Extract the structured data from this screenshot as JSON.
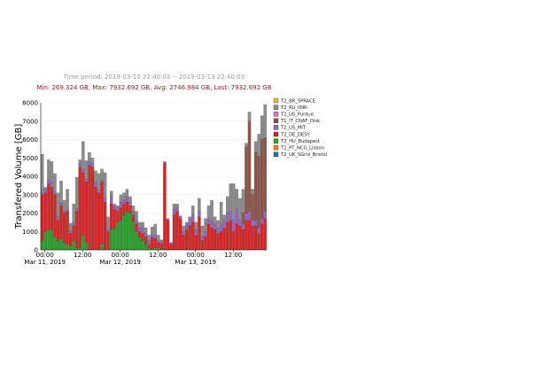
{
  "header": {
    "time_period": "Time period: 2019-03-10 22:40:03 -- 2019-03-13 22:40:03",
    "summary": "Min: 269.324 GB, Max: 7932.692 GB, Avg: 2746.984 GB, Last: 7932.692 GB"
  },
  "chart_data": {
    "type": "bar",
    "stacked": true,
    "title": "",
    "xlabel": "",
    "ylabel": "Transfered Volume [GB]",
    "ylim": [
      0,
      8000
    ],
    "yticks": [
      "0",
      "1000",
      "2000",
      "3000",
      "4000",
      "5000",
      "6000",
      "7000",
      "8000"
    ],
    "xticks": [
      {
        "hour": 1.33,
        "label": "00:00",
        "sublabel": "Mar 11, 2019"
      },
      {
        "hour": 13.33,
        "label": "12:00",
        "sublabel": ""
      },
      {
        "hour": 25.33,
        "label": "00:00",
        "sublabel": "Mar 12, 2019"
      },
      {
        "hour": 37.33,
        "label": "12:00",
        "sublabel": ""
      },
      {
        "hour": 49.33,
        "label": "00:00",
        "sublabel": "Mar 13, 2019"
      },
      {
        "hour": 61.33,
        "label": "12:00",
        "sublabel": ""
      }
    ],
    "n_bins": 72,
    "bin_hours": 1,
    "grid": true,
    "legend_position": "right",
    "legend": [
      {
        "name": "T2_BR_SPRACE",
        "color": "#d4c23a"
      },
      {
        "name": "T2_RU_IINR",
        "color": "#8c8c8c"
      },
      {
        "name": "T2_US_Purdue",
        "color": "#e377c2"
      },
      {
        "name": "T1_IT_CNAF_Disk",
        "color": "#8c564b"
      },
      {
        "name": "T2_US_MIT",
        "color": "#9467bd"
      },
      {
        "name": "T2_DE_DESY",
        "color": "#d62728"
      },
      {
        "name": "T2_HU_Budapest",
        "color": "#2ca02c"
      },
      {
        "name": "T2_PT_NCG_Lisbon",
        "color": "#ff7f0e"
      },
      {
        "name": "T2_UK_SGrid_Bristol",
        "color": "#1f77b4"
      }
    ],
    "series": [
      {
        "name": "T2_UK_SGrid_Bristol",
        "color": "#1f77b4",
        "values": [
          0,
          0,
          0,
          0,
          0,
          0,
          0,
          0,
          0,
          0,
          0,
          0,
          0,
          0,
          0,
          0,
          0,
          0,
          0,
          0,
          0,
          0,
          0,
          0,
          0,
          0,
          0,
          0,
          0,
          0,
          0,
          0,
          0,
          0,
          0,
          0,
          0,
          0,
          0,
          0,
          0,
          0,
          0,
          0,
          0,
          0,
          0,
          0,
          0,
          0,
          0,
          0,
          0,
          0,
          0,
          0,
          0,
          0,
          0,
          0,
          0,
          0,
          0,
          0,
          0,
          0,
          0,
          0,
          0,
          0,
          0,
          0
        ]
      },
      {
        "name": "T2_PT_NCG_Lisbon",
        "color": "#ff7f0e",
        "values": [
          0,
          0,
          0,
          0,
          0,
          0,
          0,
          0,
          0,
          0,
          0,
          0,
          0,
          0,
          0,
          0,
          0,
          0,
          0,
          0,
          0,
          0,
          0,
          0,
          0,
          0,
          0,
          0,
          0,
          0,
          0,
          0,
          0,
          0,
          0,
          0,
          0,
          0,
          0,
          0,
          0,
          0,
          0,
          0,
          0,
          0,
          0,
          0,
          0,
          0,
          0,
          0,
          0,
          0,
          0,
          0,
          0,
          0,
          0,
          0,
          0,
          0,
          0,
          0,
          0,
          0,
          0,
          0,
          0,
          0,
          0,
          0
        ]
      },
      {
        "name": "T2_HU_Budapest",
        "color": "#2ca02c",
        "values": [
          500,
          1000,
          1100,
          1100,
          700,
          500,
          600,
          400,
          300,
          200,
          500,
          100,
          100,
          800,
          400,
          0,
          0,
          0,
          0,
          300,
          0,
          0,
          1100,
          1200,
          1500,
          1600,
          1900,
          2100,
          2000,
          1500,
          1000,
          700,
          500,
          300,
          100,
          50,
          100,
          100,
          50,
          0,
          0,
          0,
          0,
          0,
          0,
          0,
          0,
          0,
          0,
          0,
          0,
          0,
          0,
          0,
          0,
          0,
          0,
          0,
          0,
          0,
          0,
          0,
          0,
          0,
          0,
          0,
          0,
          0,
          0,
          0,
          0,
          0
        ]
      },
      {
        "name": "T2_DE_DESY",
        "color": "#d62728",
        "values": [
          2500,
          2100,
          2500,
          2300,
          2300,
          1100,
          1800,
          1600,
          1800,
          700,
          800,
          2000,
          4400,
          3400,
          3300,
          4600,
          4500,
          3400,
          3100,
          3400,
          2600,
          1000,
          1400,
          1000,
          600,
          700,
          600,
          500,
          400,
          400,
          400,
          300,
          400,
          400,
          200,
          600,
          500,
          300,
          300,
          4700,
          1600,
          300,
          1900,
          2100,
          1700,
          800,
          1100,
          1300,
          1500,
          800,
          1800,
          500,
          700,
          1400,
          1200,
          1100,
          900,
          1000,
          1200,
          1500,
          1600,
          1000,
          1400,
          1300,
          1100,
          1600,
          1600,
          1300,
          1300,
          900,
          1400,
          1700
        ]
      },
      {
        "name": "T2_US_MIT",
        "color": "#9467bd",
        "values": [
          100,
          150,
          200,
          300,
          150,
          200,
          150,
          100,
          100,
          150,
          200,
          150,
          200,
          200,
          150,
          200,
          200,
          300,
          150,
          100,
          200,
          100,
          400,
          200,
          200,
          300,
          200,
          300,
          200,
          200,
          200,
          200,
          300,
          200,
          200,
          200,
          200,
          100,
          100,
          100,
          100,
          100,
          300,
          200,
          150,
          200,
          300,
          400,
          400,
          300,
          300,
          200,
          300,
          300,
          400,
          300,
          300,
          400,
          400,
          500,
          500,
          600,
          800,
          300,
          300,
          400,
          500,
          300,
          300,
          300,
          300,
          400
        ]
      },
      {
        "name": "T1_IT_CNAF_Disk",
        "color": "#8c564b",
        "values": [
          0,
          0,
          0,
          0,
          0,
          0,
          0,
          0,
          0,
          0,
          0,
          0,
          0,
          0,
          0,
          0,
          0,
          0,
          0,
          0,
          0,
          0,
          0,
          0,
          0,
          0,
          0,
          0,
          0,
          0,
          0,
          0,
          0,
          0,
          0,
          0,
          0,
          0,
          0,
          0,
          0,
          0,
          0,
          0,
          0,
          0,
          0,
          0,
          0,
          0,
          0,
          0,
          0,
          0,
          0,
          0,
          0,
          0,
          0,
          0,
          0,
          0,
          0,
          0,
          600,
          3600,
          4900,
          1400,
          3700,
          3900,
          4300,
          4000
        ]
      },
      {
        "name": "T2_US_Purdue",
        "color": "#e377c2",
        "values": [
          0,
          0,
          0,
          0,
          0,
          0,
          0,
          0,
          0,
          0,
          0,
          0,
          0,
          0,
          0,
          0,
          0,
          0,
          0,
          0,
          0,
          0,
          0,
          0,
          0,
          0,
          0,
          0,
          0,
          0,
          0,
          0,
          0,
          0,
          0,
          0,
          0,
          0,
          0,
          0,
          0,
          0,
          0,
          0,
          0,
          0,
          0,
          0,
          0,
          0,
          0,
          0,
          0,
          0,
          0,
          0,
          0,
          0,
          0,
          0,
          0,
          0,
          0,
          0,
          0,
          0,
          0,
          0,
          0,
          0,
          0,
          0
        ]
      },
      {
        "name": "T2_RU_IINR",
        "color": "#8c8c8c",
        "values": [
          2100,
          150,
          1100,
          1100,
          1000,
          1300,
          1200,
          600,
          1100,
          400,
          1000,
          1700,
          200,
          1500,
          1000,
          500,
          300,
          600,
          900,
          600,
          1400,
          700,
          300,
          100,
          100,
          400,
          400,
          400,
          300,
          300,
          500,
          300,
          300,
          300,
          300,
          400,
          600,
          300,
          100,
          0,
          0,
          0,
          300,
          200,
          0,
          300,
          100,
          100,
          500,
          400,
          700,
          600,
          700,
          700,
          1100,
          400,
          400,
          1200,
          300,
          900,
          1500,
          2000,
          1100,
          1200,
          1300,
          200,
          500,
          300,
          600,
          1200,
          1300,
          1800
        ]
      },
      {
        "name": "T2_BR_SPRACE",
        "color": "#d4c23a",
        "values": [
          0,
          0,
          0,
          0,
          0,
          0,
          0,
          0,
          0,
          0,
          0,
          0,
          0,
          0,
          0,
          0,
          0,
          0,
          0,
          0,
          0,
          0,
          0,
          0,
          0,
          0,
          0,
          0,
          0,
          0,
          0,
          0,
          0,
          0,
          0,
          0,
          0,
          0,
          0,
          0,
          0,
          0,
          0,
          0,
          0,
          0,
          0,
          0,
          0,
          0,
          0,
          0,
          0,
          0,
          0,
          0,
          0,
          0,
          0,
          0,
          0,
          0,
          0,
          0,
          0,
          0,
          0,
          0,
          0,
          0,
          0,
          0
        ]
      }
    ]
  }
}
